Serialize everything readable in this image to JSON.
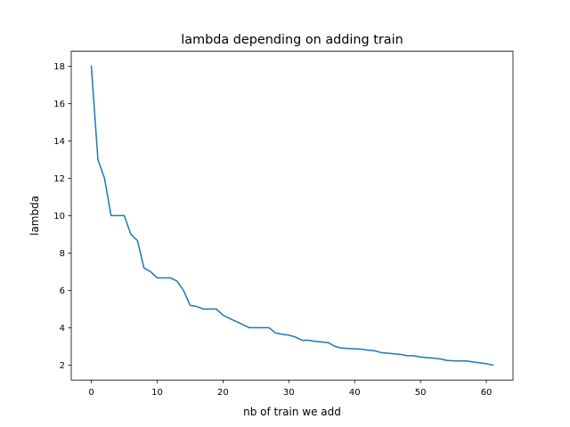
{
  "chart_data": {
    "type": "line",
    "title": "lambda depending on adding train",
    "xlabel": "nb of train we add",
    "ylabel": "lambda",
    "xlim": [
      -3.05,
      64.05
    ],
    "ylim": [
      1.2,
      18.8
    ],
    "xticks": [
      0,
      10,
      20,
      30,
      40,
      50,
      60
    ],
    "yticks": [
      2,
      4,
      6,
      8,
      10,
      12,
      14,
      16,
      18
    ],
    "xtick_labels": [
      "0",
      "10",
      "20",
      "30",
      "40",
      "50",
      "60"
    ],
    "ytick_labels": [
      "2",
      "4",
      "6",
      "8",
      "10",
      "12",
      "14",
      "16",
      "18"
    ],
    "grid": false,
    "series": [
      {
        "name": "lambda",
        "color": "#1f77b4",
        "x": [
          0,
          1,
          2,
          3,
          4,
          5,
          6,
          7,
          8,
          9,
          10,
          11,
          12,
          13,
          14,
          15,
          16,
          17,
          18,
          19,
          20,
          21,
          22,
          23,
          24,
          25,
          26,
          27,
          28,
          29,
          30,
          31,
          32,
          33,
          34,
          35,
          36,
          37,
          38,
          39,
          40,
          41,
          42,
          43,
          44,
          45,
          46,
          47,
          48,
          49,
          50,
          51,
          52,
          53,
          54,
          55,
          56,
          57,
          58,
          59,
          60,
          61
        ],
        "y": [
          18,
          13,
          12,
          10,
          10,
          10,
          9,
          8.67,
          7.2,
          7,
          6.67,
          6.67,
          6.67,
          6.5,
          6,
          5.2,
          5.14,
          5,
          5,
          5,
          4.67,
          4.5,
          4.33,
          4.17,
          4,
          4,
          4,
          4,
          3.72,
          3.65,
          3.6,
          3.5,
          3.33,
          3.33,
          3.27,
          3.24,
          3.2,
          3,
          2.91,
          2.89,
          2.87,
          2.85,
          2.8,
          2.77,
          2.67,
          2.64,
          2.6,
          2.57,
          2.5,
          2.5,
          2.43,
          2.4,
          2.37,
          2.33,
          2.25,
          2.23,
          2.22,
          2.22,
          2.17,
          2.12,
          2.07,
          2
        ]
      }
    ]
  }
}
